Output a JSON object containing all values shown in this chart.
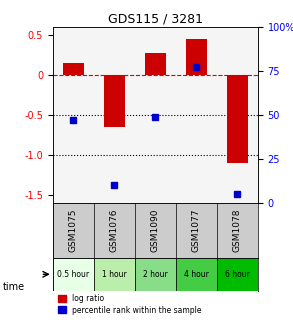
{
  "title": "GDS115 / 3281",
  "samples": [
    "GSM1075",
    "GSM1076",
    "GSM1090",
    "GSM1077",
    "GSM1078"
  ],
  "time_labels": [
    "0.5 hour",
    "1 hour",
    "2 hour",
    "4 hour",
    "6 hour"
  ],
  "time_colors": [
    "#ccffcc",
    "#99ee99",
    "#66dd66",
    "#33cc33",
    "#00bb00"
  ],
  "log_ratios": [
    0.15,
    -0.65,
    0.27,
    0.45,
    -1.1
  ],
  "percentile_ranks": [
    47,
    10,
    49,
    77,
    5
  ],
  "bar_color": "#cc0000",
  "dot_color": "#0000cc",
  "ylim_left": [
    -1.6,
    0.6
  ],
  "ylim_right": [
    0,
    100
  ],
  "left_ticks": [
    0.5,
    0.0,
    -0.5,
    -1.0,
    -1.5
  ],
  "right_ticks": [
    100,
    75,
    50,
    25,
    0
  ],
  "zero_line_color": "#dd0000",
  "dotted_line_color": "#000000",
  "bg_color": "#ffffff",
  "plot_bg": "#f5f5f5"
}
